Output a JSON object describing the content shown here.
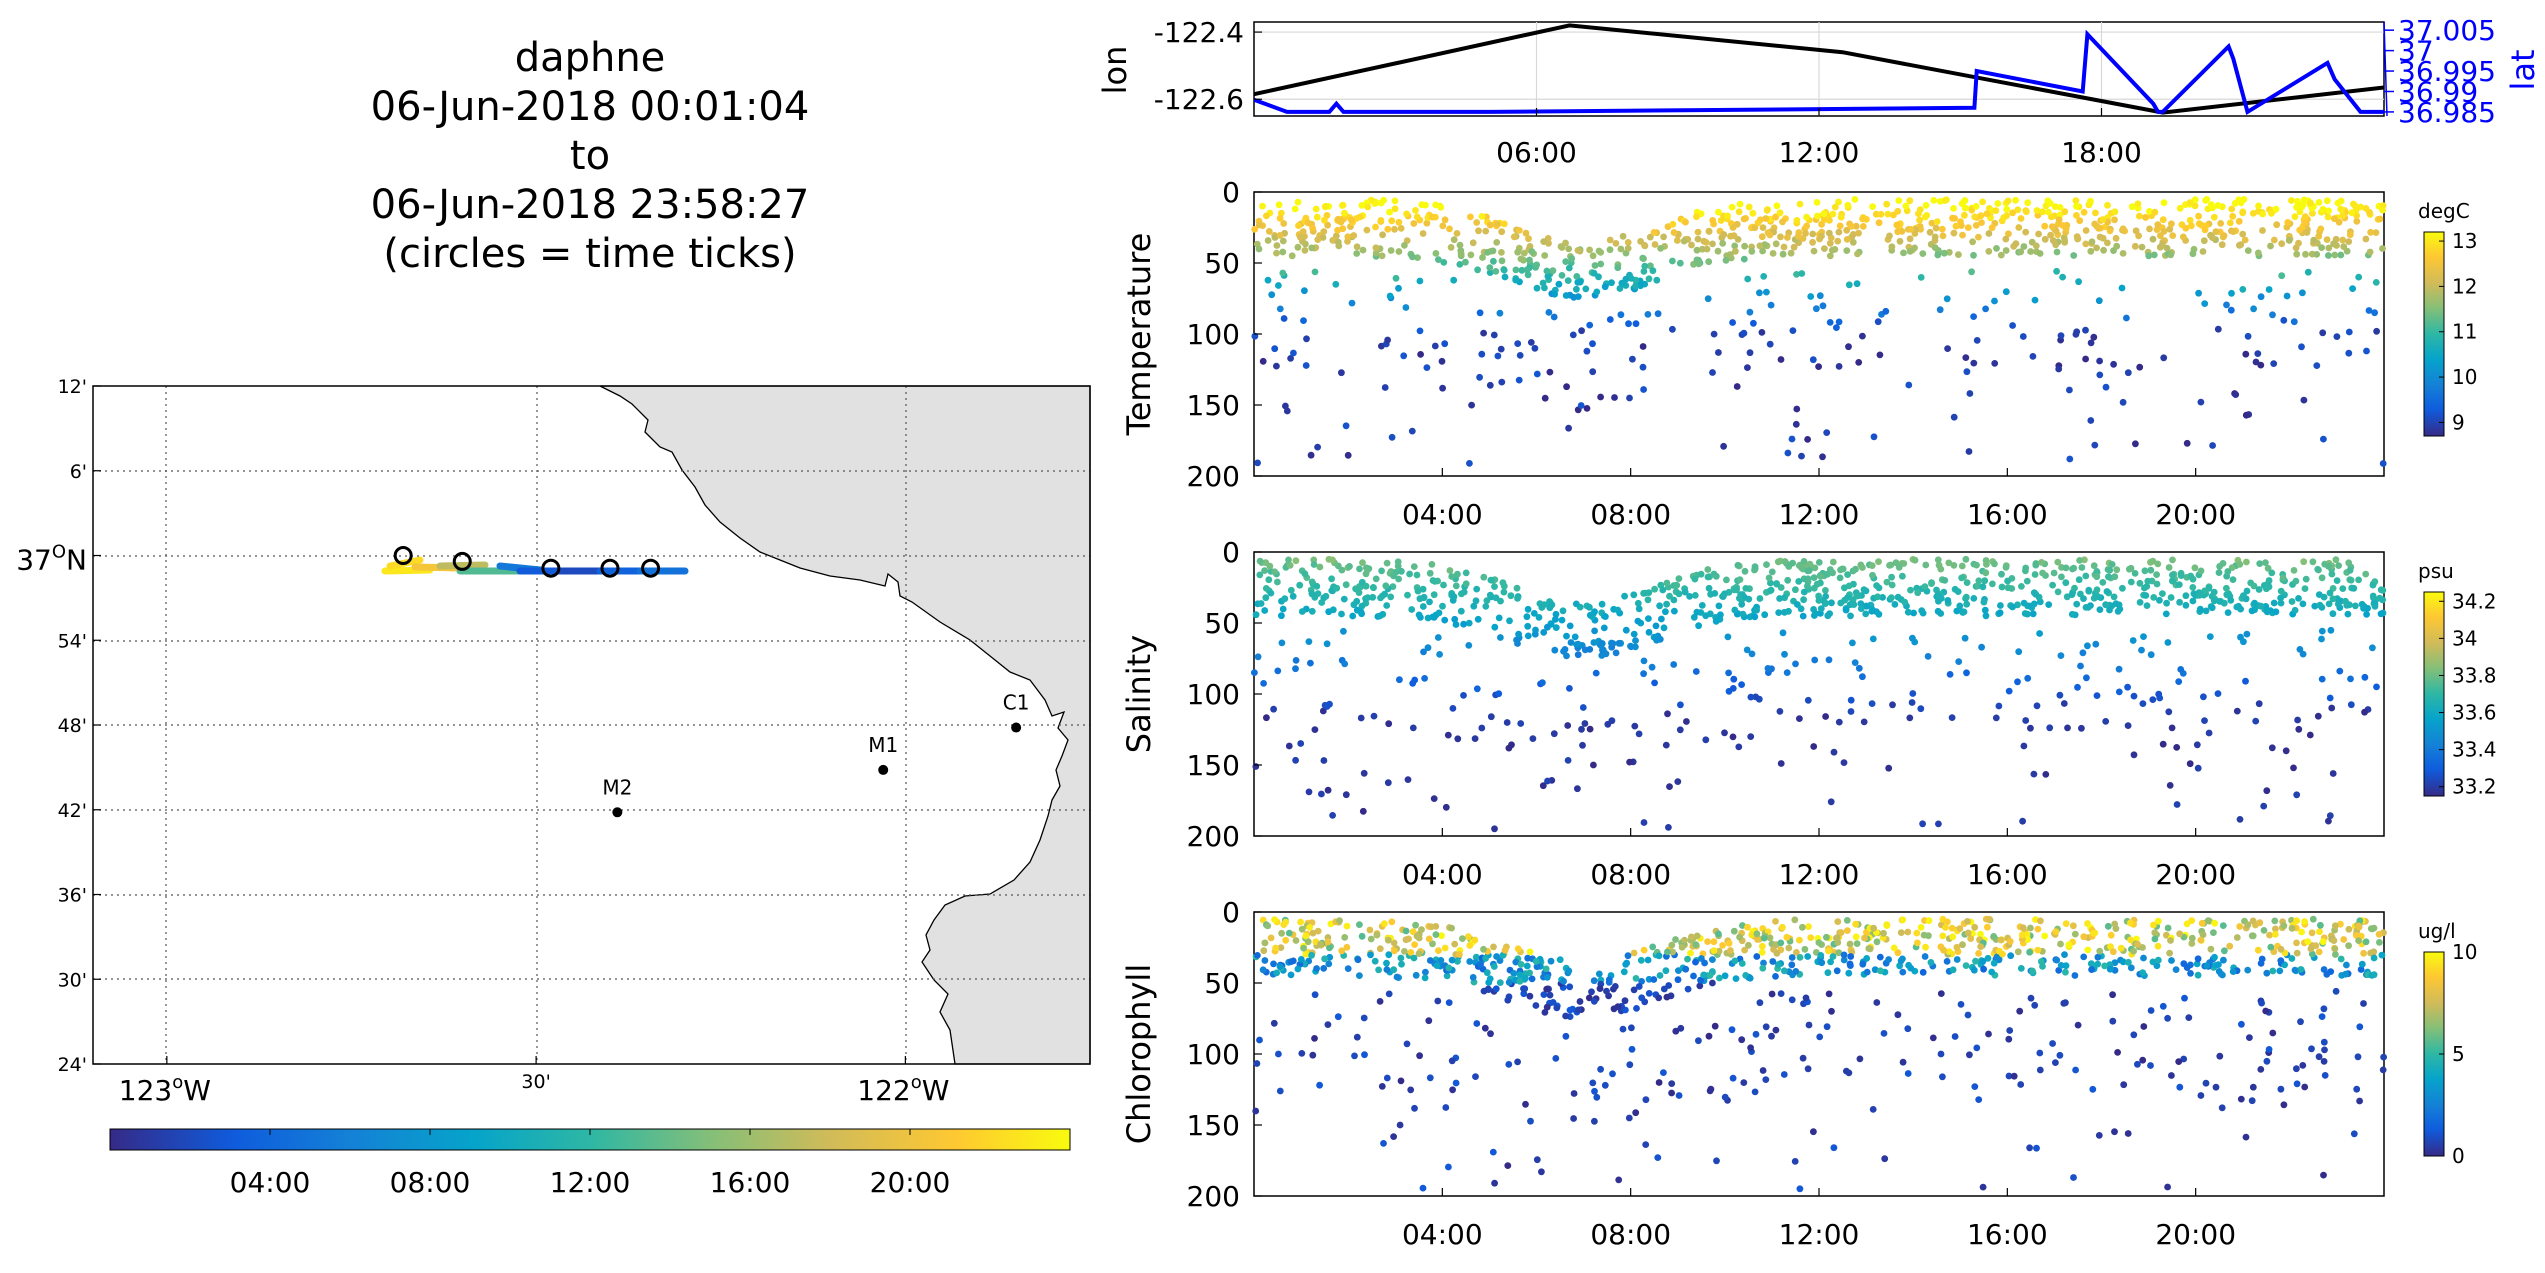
{
  "title": {
    "lines": [
      "daphne",
      "06-Jun-2018 00:01:04",
      "to",
      "06-Jun-2018 23:58:27",
      "(circles = time ticks)"
    ]
  },
  "chart_data": [
    {
      "id": "map",
      "type": "scatter",
      "lon_ticks": [
        {
          "value": -123.0,
          "label": "123",
          "sup": "o",
          "suffix": "W"
        },
        {
          "value": -122.5,
          "label": "30'",
          "sup": "",
          "suffix": ""
        },
        {
          "value": -122.0,
          "label": "122",
          "sup": "o",
          "suffix": "W"
        }
      ],
      "lat_ticks": [
        {
          "value": 37.2,
          "label": "12'"
        },
        {
          "value": 37.1,
          "label": "6'"
        },
        {
          "value": 37.0,
          "label": "37",
          "sup": "O",
          "suffix": "N"
        },
        {
          "value": 36.9,
          "label": "54'"
        },
        {
          "value": 36.8,
          "label": "48'"
        },
        {
          "value": 36.7,
          "label": "42'"
        },
        {
          "value": 36.6,
          "label": "36'"
        },
        {
          "value": 36.5,
          "label": "30'"
        },
        {
          "value": 36.4,
          "label": "24'"
        }
      ],
      "xlim": [
        -123.1,
        -121.75
      ],
      "ylim": [
        36.4,
        37.2
      ],
      "stations": [
        {
          "name": "C1",
          "lon": -121.85,
          "lat": 36.797
        },
        {
          "name": "M1",
          "lon": -122.03,
          "lat": 36.747
        },
        {
          "name": "M2",
          "lon": -122.39,
          "lat": 36.697
        }
      ],
      "track": {
        "lon_range": [
          -122.74,
          -122.3
        ],
        "lat": 36.985
      },
      "time_circles": [
        {
          "lon": -122.68,
          "lat": 37.0
        },
        {
          "lon": -122.6,
          "lat": 36.993
        },
        {
          "lon": -122.48,
          "lat": 36.985
        },
        {
          "lon": -122.4,
          "lat": 36.985
        },
        {
          "lon": -122.345,
          "lat": 36.985
        }
      ],
      "colorbar": {
        "ticks": [
          "04:00",
          "08:00",
          "12:00",
          "16:00",
          "20:00"
        ],
        "range_hours": [
          0,
          24
        ]
      }
    },
    {
      "id": "position",
      "type": "line",
      "x_ticks": [
        "06:00",
        "12:00",
        "18:00"
      ],
      "xlim_hours": [
        0,
        24
      ],
      "ylabel_left": "lon",
      "ylabel_right": "lat",
      "ylim_left": [
        -122.65,
        -122.37
      ],
      "yticks_left": [
        "-122.4",
        "-122.6"
      ],
      "ylim_right": [
        36.984,
        37.007
      ],
      "yticks_right": [
        "37.005",
        "37",
        "36.995",
        "36.99",
        "36.985"
      ],
      "series": [
        {
          "axis": "left",
          "color": "#000000",
          "hours": [
            0,
            6.7,
            12.5,
            19.3,
            24
          ],
          "values": [
            -122.585,
            -122.38,
            -122.46,
            -122.64,
            -122.565
          ]
        },
        {
          "axis": "right",
          "color": "#0000ff",
          "hours": [
            0,
            0.7,
            1.6,
            1.75,
            1.9,
            5,
            15.3,
            15.35,
            17.6,
            17.7,
            19.1,
            19.2,
            19.3,
            20.7,
            20.8,
            21.1,
            22.8,
            22.95,
            23.5,
            24
          ],
          "values": [
            36.988,
            36.985,
            36.985,
            36.987,
            36.985,
            36.985,
            36.986,
            36.995,
            36.99,
            37.004,
            36.987,
            36.985,
            36.985,
            37.001,
            36.998,
            36.985,
            36.997,
            36.993,
            36.985,
            36.985
          ]
        }
      ],
      "colors": {
        "lon": "#000000",
        "lat": "#0000ff"
      }
    },
    {
      "id": "temperature",
      "type": "scatter",
      "ylabel": "Temperature",
      "ylim": [
        200,
        0
      ],
      "yticks": [
        "0",
        "50",
        "100",
        "150",
        "200"
      ],
      "x_ticks": [
        "04:00",
        "08:00",
        "12:00",
        "16:00",
        "20:00"
      ],
      "xlim_hours": [
        0,
        24
      ],
      "colorbar": {
        "unit": "degC",
        "ticks": [
          "13",
          "12",
          "11",
          "10",
          "9"
        ],
        "range": [
          8.7,
          13.2
        ]
      }
    },
    {
      "id": "salinity",
      "type": "scatter",
      "ylabel": "Salinity",
      "ylim": [
        200,
        0
      ],
      "yticks": [
        "0",
        "50",
        "100",
        "150",
        "200"
      ],
      "x_ticks": [
        "04:00",
        "08:00",
        "12:00",
        "16:00",
        "20:00"
      ],
      "xlim_hours": [
        0,
        24
      ],
      "colorbar": {
        "unit": "psu",
        "ticks": [
          "34.2",
          "34",
          "33.8",
          "33.6",
          "33.4",
          "33.2"
        ],
        "range": [
          33.15,
          34.25
        ]
      }
    },
    {
      "id": "chlorophyll",
      "type": "scatter",
      "ylabel": "Chlorophyll",
      "ylim": [
        200,
        0
      ],
      "yticks": [
        "0",
        "50",
        "100",
        "150",
        "200"
      ],
      "x_ticks": [
        "04:00",
        "08:00",
        "12:00",
        "16:00",
        "20:00"
      ],
      "xlim_hours": [
        0,
        24
      ],
      "colorbar": {
        "unit": "ug/l",
        "ticks": [
          "10",
          "5",
          "0"
        ],
        "range": [
          0,
          10
        ]
      }
    }
  ]
}
